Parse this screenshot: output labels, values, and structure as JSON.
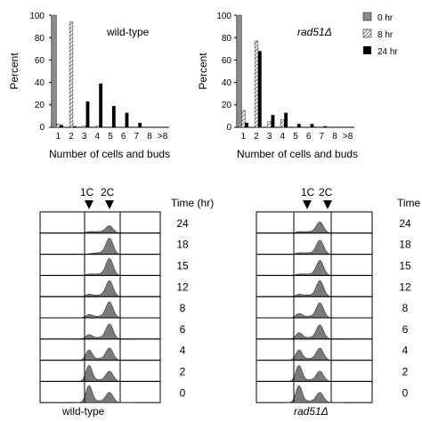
{
  "chart_data": [
    {
      "type": "bar",
      "title": "wild-type",
      "xlabel": "Number of cells and buds",
      "ylabel": "Percent",
      "ylim": [
        0,
        100
      ],
      "yticks": [
        "0",
        "20",
        "40",
        "60",
        "80",
        "100"
      ],
      "categories": [
        "1",
        "2",
        "3",
        "4",
        "5",
        "6",
        "7",
        "8",
        ">8"
      ],
      "series": [
        {
          "name": "0 hr",
          "color": "#8c8c8c",
          "pattern": "solid-gray",
          "values": [
            100,
            0,
            0,
            0,
            0,
            0,
            0,
            0,
            0
          ]
        },
        {
          "name": "8 hr",
          "color": "#555555",
          "pattern": "hatched",
          "values": [
            3,
            94,
            1,
            1,
            0,
            0,
            0,
            0,
            0
          ]
        },
        {
          "name": "24 hr",
          "color": "#000000",
          "pattern": "solid-black",
          "values": [
            2,
            1,
            23,
            39,
            19,
            13,
            4,
            0,
            0
          ]
        }
      ]
    },
    {
      "type": "bar",
      "title": "rad51Δ",
      "xlabel": "Number of cells and buds",
      "ylabel": "Percent",
      "ylim": [
        0,
        100
      ],
      "yticks": [
        "0",
        "20",
        "40",
        "60",
        "80",
        "100"
      ],
      "categories": [
        "1",
        "2",
        "3",
        "4",
        "5",
        "6",
        "7",
        "8",
        ">8"
      ],
      "series": [
        {
          "name": "0 hr",
          "color": "#8c8c8c",
          "pattern": "solid-gray",
          "values": [
            100,
            0,
            0,
            0,
            0,
            0,
            0,
            0,
            0
          ]
        },
        {
          "name": "8 hr",
          "color": "#555555",
          "pattern": "hatched",
          "values": [
            15,
            77,
            5,
            7,
            0,
            0,
            0,
            0,
            0
          ]
        },
        {
          "name": "24 hr",
          "color": "#000000",
          "pattern": "solid-black",
          "values": [
            4,
            68,
            11,
            13,
            3,
            3,
            1,
            0,
            0
          ]
        }
      ]
    }
  ],
  "legend": {
    "placement": "right",
    "items": [
      {
        "label": "0 hr",
        "pattern": "solid-gray"
      },
      {
        "label": "8 hr",
        "pattern": "hatched"
      },
      {
        "label": "24 hr",
        "pattern": "solid-black"
      }
    ]
  },
  "flow_panels": [
    {
      "caption": "wild-type",
      "markers": [
        "1C",
        "2C"
      ],
      "time_header": "Time (hr)",
      "times": [
        "24",
        "18",
        "15",
        "12",
        "8",
        "6",
        "4",
        "2",
        "0"
      ]
    },
    {
      "caption": "rad51Δ",
      "markers": [
        "1C",
        "2C"
      ],
      "time_header": "Time",
      "times": [
        "24",
        "18",
        "15",
        "12",
        "8",
        "6",
        "4",
        "2",
        "0"
      ]
    }
  ]
}
